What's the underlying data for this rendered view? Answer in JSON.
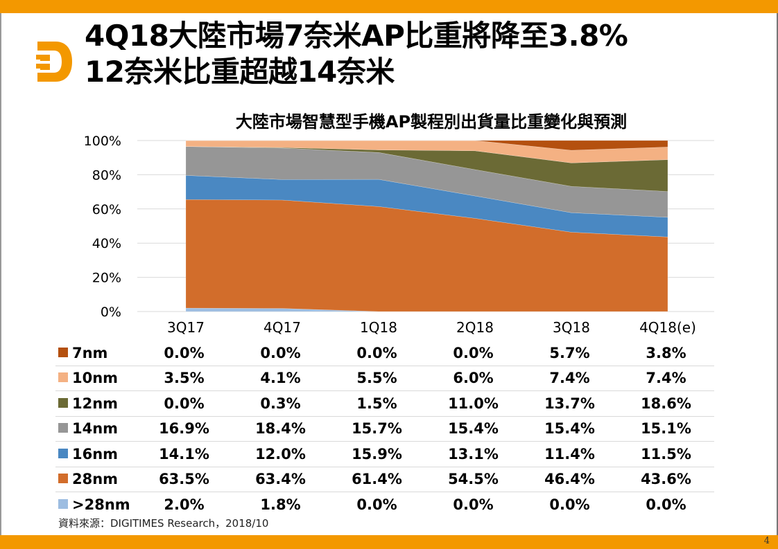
{
  "slide": {
    "title_line1": "4Q18大陸市場7奈米AP比重將降至3.8%",
    "title_line2": "12奈米比重超越14奈米",
    "source": "資料來源：DIGITIMES Research，2018/10",
    "page_number": "4",
    "brand_color": "#f39800"
  },
  "chart_data": {
    "type": "area",
    "stacked": true,
    "title": "大陸市場智慧型手機AP製程別出貨量比重變化與預測",
    "xlabel": "",
    "ylabel": "",
    "categories": [
      "3Q17",
      "4Q17",
      "1Q18",
      "2Q18",
      "3Q18",
      "4Q18(e)"
    ],
    "y_ticks": [
      "0%",
      "20%",
      "40%",
      "60%",
      "80%",
      "100%"
    ],
    "ylim": [
      0,
      100
    ],
    "grid": true,
    "legend": "data-table-below",
    "series": [
      {
        "name": "7nm",
        "color": "#b4500f",
        "values": [
          0.0,
          0.0,
          0.0,
          0.0,
          5.7,
          3.8
        ],
        "labels": [
          "0.0%",
          "0.0%",
          "0.0%",
          "0.0%",
          "5.7%",
          "3.8%"
        ]
      },
      {
        "name": "10nm",
        "color": "#f4b183",
        "values": [
          3.5,
          4.1,
          5.5,
          6.0,
          7.4,
          7.4
        ],
        "labels": [
          "3.5%",
          "4.1%",
          "5.5%",
          "6.0%",
          "7.4%",
          "7.4%"
        ]
      },
      {
        "name": "12nm",
        "color": "#6b6a35",
        "values": [
          0.0,
          0.3,
          1.5,
          11.0,
          13.7,
          18.6
        ],
        "labels": [
          "0.0%",
          "0.3%",
          "1.5%",
          "11.0%",
          "13.7%",
          "18.6%"
        ]
      },
      {
        "name": "14nm",
        "color": "#969696",
        "values": [
          16.9,
          18.4,
          15.7,
          15.4,
          15.4,
          15.1
        ],
        "labels": [
          "16.9%",
          "18.4%",
          "15.7%",
          "15.4%",
          "15.4%",
          "15.1%"
        ]
      },
      {
        "name": "16nm",
        "color": "#4a88c2",
        "values": [
          14.1,
          12.0,
          15.9,
          13.1,
          11.4,
          11.5
        ],
        "labels": [
          "14.1%",
          "12.0%",
          "15.9%",
          "13.1%",
          "11.4%",
          "11.5%"
        ]
      },
      {
        "name": "28nm",
        "color": "#d26d2b",
        "values": [
          63.5,
          63.4,
          61.4,
          54.5,
          46.4,
          43.6
        ],
        "labels": [
          "63.5%",
          "63.4%",
          "61.4%",
          "54.5%",
          "46.4%",
          "43.6%"
        ]
      },
      {
        "name": ">28nm",
        "color": "#9dbde1",
        "values": [
          2.0,
          1.8,
          0.0,
          0.0,
          0.0,
          0.0
        ],
        "labels": [
          "2.0%",
          "1.8%",
          "0.0%",
          "0.0%",
          "0.0%",
          "0.0%"
        ]
      }
    ]
  }
}
